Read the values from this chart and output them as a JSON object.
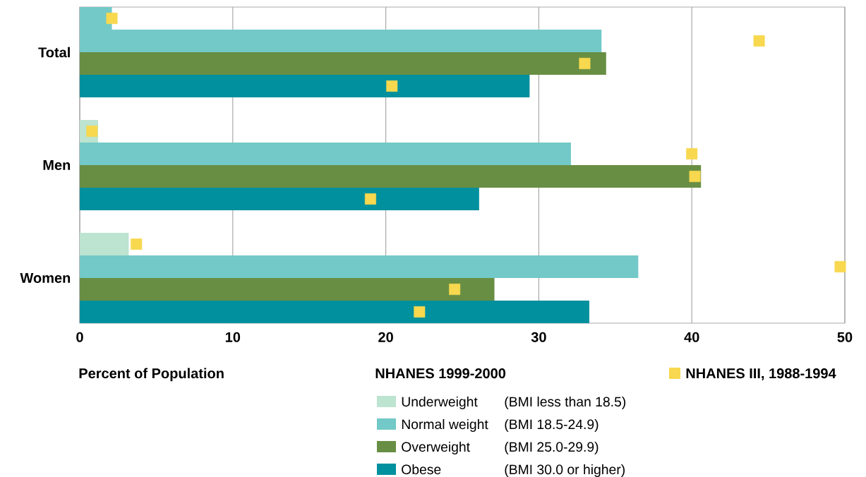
{
  "chart_data": {
    "type": "bar",
    "orientation": "horizontal",
    "categories": [
      "Total",
      "Men",
      "Women"
    ],
    "xlabel": "Percent of Population",
    "legend_title": "NHANES 1999-2000",
    "xlim": [
      0,
      50
    ],
    "xticks": [
      0,
      10,
      20,
      30,
      40,
      50
    ],
    "grid": "x",
    "legend": "bottom",
    "series": [
      {
        "name": "Underweight",
        "colors": [
          "#72c9c7",
          "#bde3d1",
          "#bde3d1"
        ],
        "color": "#bde3d1",
        "values": [
          2.1,
          1.2,
          3.2
        ]
      },
      {
        "name": "Normal weight",
        "color": "#72c9c7",
        "values": [
          34.1,
          32.1,
          36.5
        ]
      },
      {
        "name": "Overweight",
        "color": "#688e43",
        "values": [
          34.4,
          40.6,
          27.1
        ]
      },
      {
        "name": "Obese",
        "color": "#00909e",
        "values": [
          29.4,
          26.1,
          33.3
        ]
      },
      {
        "name": "NHANES III, 1988-1994",
        "type": "scatter",
        "marker": "square",
        "color": "#f8d84e",
        "x": [
          "Total",
          "Total",
          "Total",
          "Total",
          "Men",
          "Men",
          "Men",
          "Men",
          "Women",
          "Women",
          "Women",
          "Women"
        ],
        "values": [
          2.1,
          44.4,
          33.0,
          20.4,
          0.8,
          40.0,
          40.2,
          19.0,
          3.7,
          49.7,
          24.5,
          22.2
        ]
      }
    ],
    "annotations": [
      "(BMI less than 18.5)",
      "(BMI 18.5-24.9)",
      "(BMI 25.0-29.9)",
      "(BMI 30.0 or higher)"
    ]
  }
}
